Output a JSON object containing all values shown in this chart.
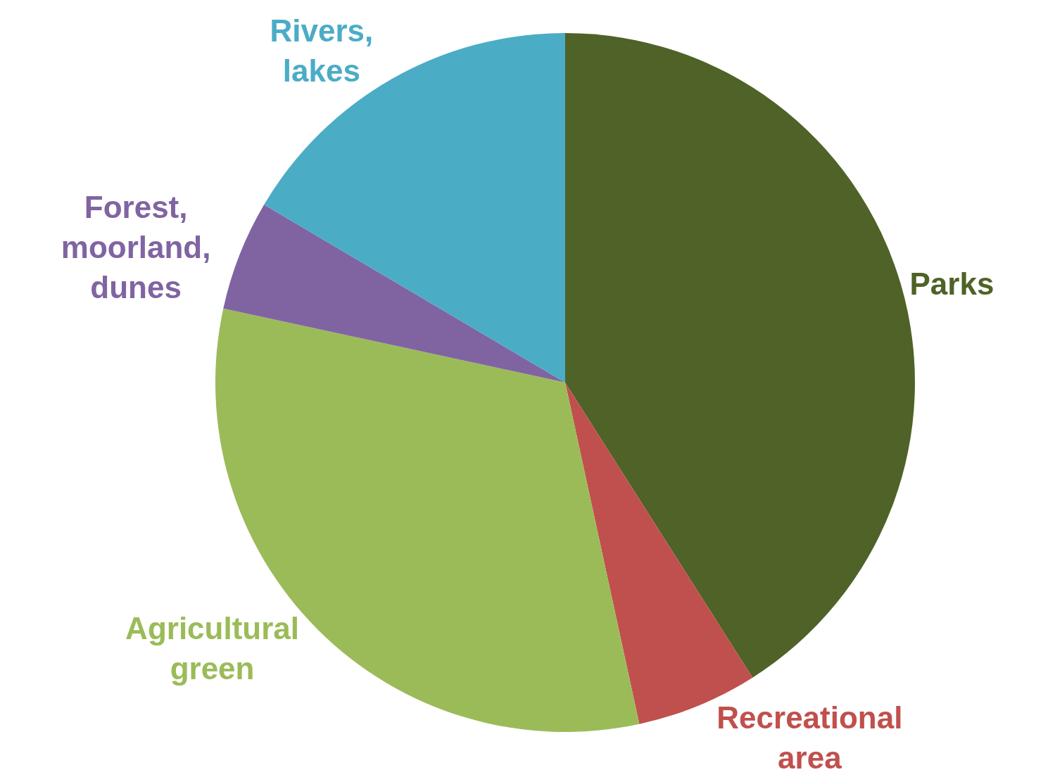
{
  "chart_data": {
    "type": "pie",
    "categories": [
      "Parks",
      "Recreational area",
      "Agricultural green",
      "Forest, moorland, dunes",
      "Rivers, lakes"
    ],
    "values": [
      41,
      5.6,
      31.8,
      5.1,
      16.5
    ],
    "colors": [
      "#4f6228",
      "#c0504d",
      "#9bbb59",
      "#8064a2",
      "#4bacc6"
    ],
    "legend": false
  }
}
